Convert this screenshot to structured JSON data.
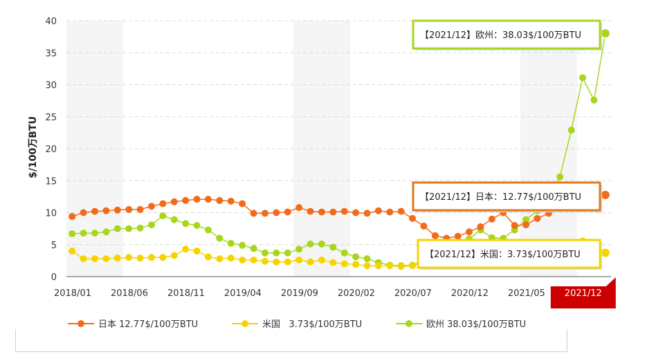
{
  "chart_data": {
    "type": "line",
    "ylabel": "$/100万BTU",
    "ylim": [
      0,
      40
    ],
    "yticks": [
      "0",
      "5",
      "10",
      "15",
      "20",
      "25",
      "30",
      "35",
      "40"
    ],
    "x_tick_labels": [
      "2018/01",
      "2018/06",
      "2018/11",
      "2019/04",
      "2019/09",
      "2020/02",
      "2020/07",
      "2020/12",
      "2021/05",
      "2021/12"
    ],
    "highlighted_tick": "2021/12",
    "grid": "horizontal dashed",
    "legend_position": "bottom",
    "x": [
      "2018/01",
      "2018/02",
      "2018/03",
      "2018/04",
      "2018/05",
      "2018/06",
      "2018/07",
      "2018/08",
      "2018/09",
      "2018/10",
      "2018/11",
      "2018/12",
      "2019/01",
      "2019/02",
      "2019/03",
      "2019/04",
      "2019/05",
      "2019/06",
      "2019/07",
      "2019/08",
      "2019/09",
      "2019/10",
      "2019/11",
      "2019/12",
      "2020/01",
      "2020/02",
      "2020/03",
      "2020/04",
      "2020/05",
      "2020/06",
      "2020/07",
      "2020/08",
      "2020/09",
      "2020/10",
      "2020/11",
      "2020/12",
      "2021/01",
      "2021/02",
      "2021/03",
      "2021/04",
      "2021/05",
      "2021/06",
      "2021/07",
      "2021/08",
      "2021/09",
      "2021/10",
      "2021/11",
      "2021/12"
    ],
    "series": [
      {
        "name": "日本",
        "legend": "日本 12.77$/100万BTU",
        "color": "#f26a1b",
        "values": [
          9.4,
          10.0,
          10.2,
          10.3,
          10.4,
          10.5,
          10.5,
          11.0,
          11.4,
          11.7,
          11.9,
          12.1,
          12.1,
          11.9,
          11.8,
          11.4,
          9.9,
          9.9,
          10.0,
          10.1,
          10.8,
          10.2,
          10.1,
          10.1,
          10.2,
          10.0,
          9.9,
          10.3,
          10.1,
          10.2,
          9.1,
          7.9,
          6.4,
          6.0,
          6.3,
          7.0,
          7.8,
          9.0,
          10.0,
          8.0,
          8.1,
          9.1,
          9.9,
          10.6,
          12.0,
          13.5,
          12.5,
          12.77
        ]
      },
      {
        "name": "米国",
        "legend": "米国   3.73$/100万BTU",
        "color": "#f5d400",
        "values": [
          4.0,
          2.8,
          2.8,
          2.8,
          2.9,
          3.0,
          2.9,
          3.0,
          3.0,
          3.3,
          4.3,
          4.0,
          3.1,
          2.8,
          2.9,
          2.6,
          2.6,
          2.4,
          2.3,
          2.3,
          2.6,
          2.3,
          2.6,
          2.2,
          2.0,
          1.9,
          1.7,
          1.7,
          1.7,
          1.6,
          1.7,
          2.3,
          1.9,
          2.2,
          2.6,
          2.5,
          2.7,
          3.2,
          2.6,
          2.7,
          2.9,
          3.2,
          3.8,
          4.1,
          5.0,
          5.6,
          5.3,
          3.73
        ]
      },
      {
        "name": "欧州",
        "legend": "欧州 38.03$/100万BTU",
        "color": "#a8d61c",
        "values": [
          6.7,
          6.8,
          6.8,
          7.0,
          7.5,
          7.5,
          7.6,
          8.1,
          9.5,
          8.9,
          8.3,
          8.0,
          7.3,
          6.0,
          5.2,
          4.9,
          4.4,
          3.7,
          3.7,
          3.7,
          4.3,
          5.1,
          5.1,
          4.6,
          3.7,
          3.1,
          2.8,
          2.2,
          1.8,
          1.7,
          1.8,
          2.5,
          2.4,
          3.3,
          4.1,
          5.9,
          7.3,
          6.1,
          6.0,
          7.3,
          8.9,
          10.3,
          12.6,
          15.6,
          22.9,
          31.1,
          27.6,
          38.03
        ]
      }
    ],
    "annotations": [
      {
        "series": "欧州",
        "text": "【2021/12】欧州：38.03$/100万BTU",
        "border": "#a8d61c"
      },
      {
        "series": "日本",
        "text": "【2021/12】日本：12.77$/100万BTU",
        "border": "#e0781c"
      },
      {
        "series": "米国",
        "text": "【2021/12】米国：3.73$/100万BTU",
        "border": "#f5d400"
      }
    ]
  }
}
